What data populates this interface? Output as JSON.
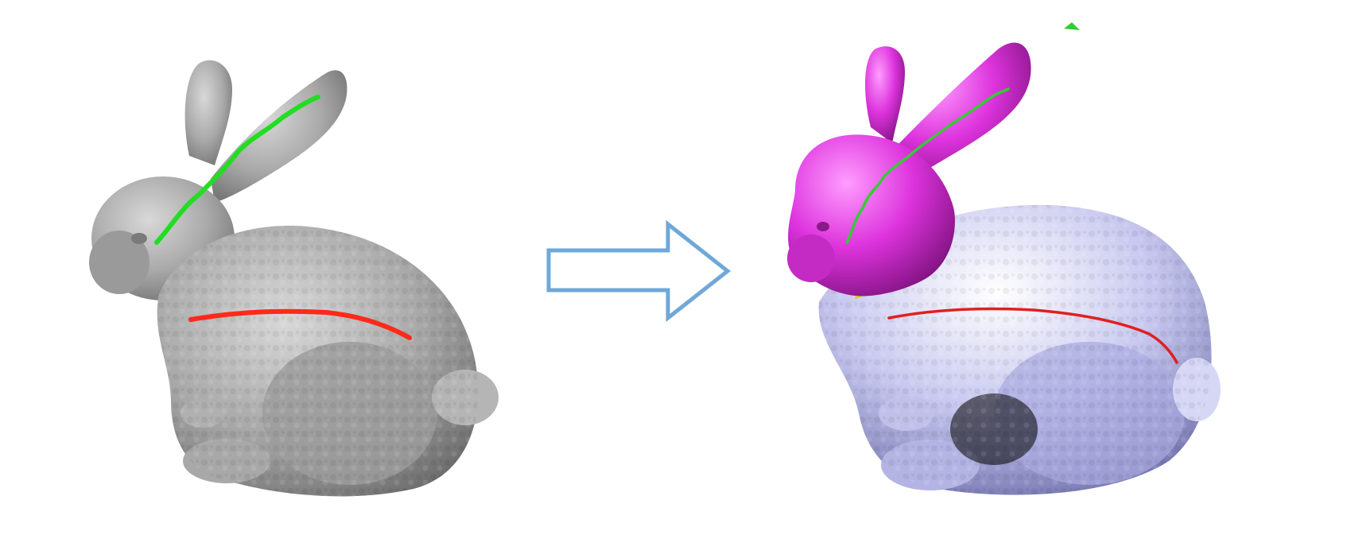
{
  "figure": {
    "panels": [
      {
        "id": "input",
        "model": "bunny",
        "surface_color": "#a9a9a9",
        "strokes": [
          {
            "part": "ear",
            "color": "#22dd22"
          },
          {
            "part": "body",
            "color": "#ff2a1a"
          }
        ]
      },
      {
        "id": "output",
        "model": "bunny",
        "segments": [
          {
            "part": "head",
            "color": "#dd33dd"
          },
          {
            "part": "body",
            "color": "#c8c8f0"
          }
        ],
        "boundary_color": "#e0d020",
        "strokes": [
          {
            "part": "ear",
            "color": "#33cc33"
          },
          {
            "part": "body",
            "color": "#e02020"
          }
        ]
      }
    ],
    "arrow": {
      "direction": "right",
      "stroke": "#6fa8d8",
      "fill": "#ffffff"
    }
  }
}
